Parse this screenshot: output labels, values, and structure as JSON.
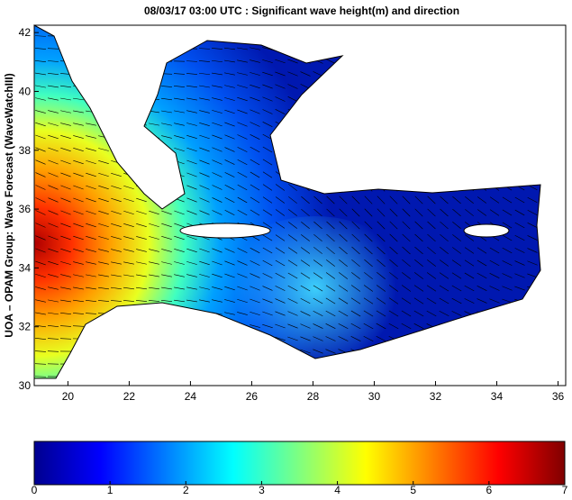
{
  "map": {
    "title": "08/03/17 03:00 UTC : Significant wave height(m) and direction",
    "y_label": "UOA – OPAM Group: Wave Forecast (WaveWatchIII)",
    "xlim": [
      18.9,
      36.25
    ],
    "xticks": [
      20,
      22,
      24,
      26,
      28,
      30,
      32,
      34,
      36
    ],
    "ylim": [
      30,
      42.25
    ],
    "yticks": [
      30,
      32,
      34,
      36,
      38,
      40,
      42
    ],
    "colorbar": {
      "lim": [
        0,
        7
      ],
      "ticks": [
        0,
        1,
        2,
        3,
        4,
        5,
        6,
        7
      ]
    }
  }
}
